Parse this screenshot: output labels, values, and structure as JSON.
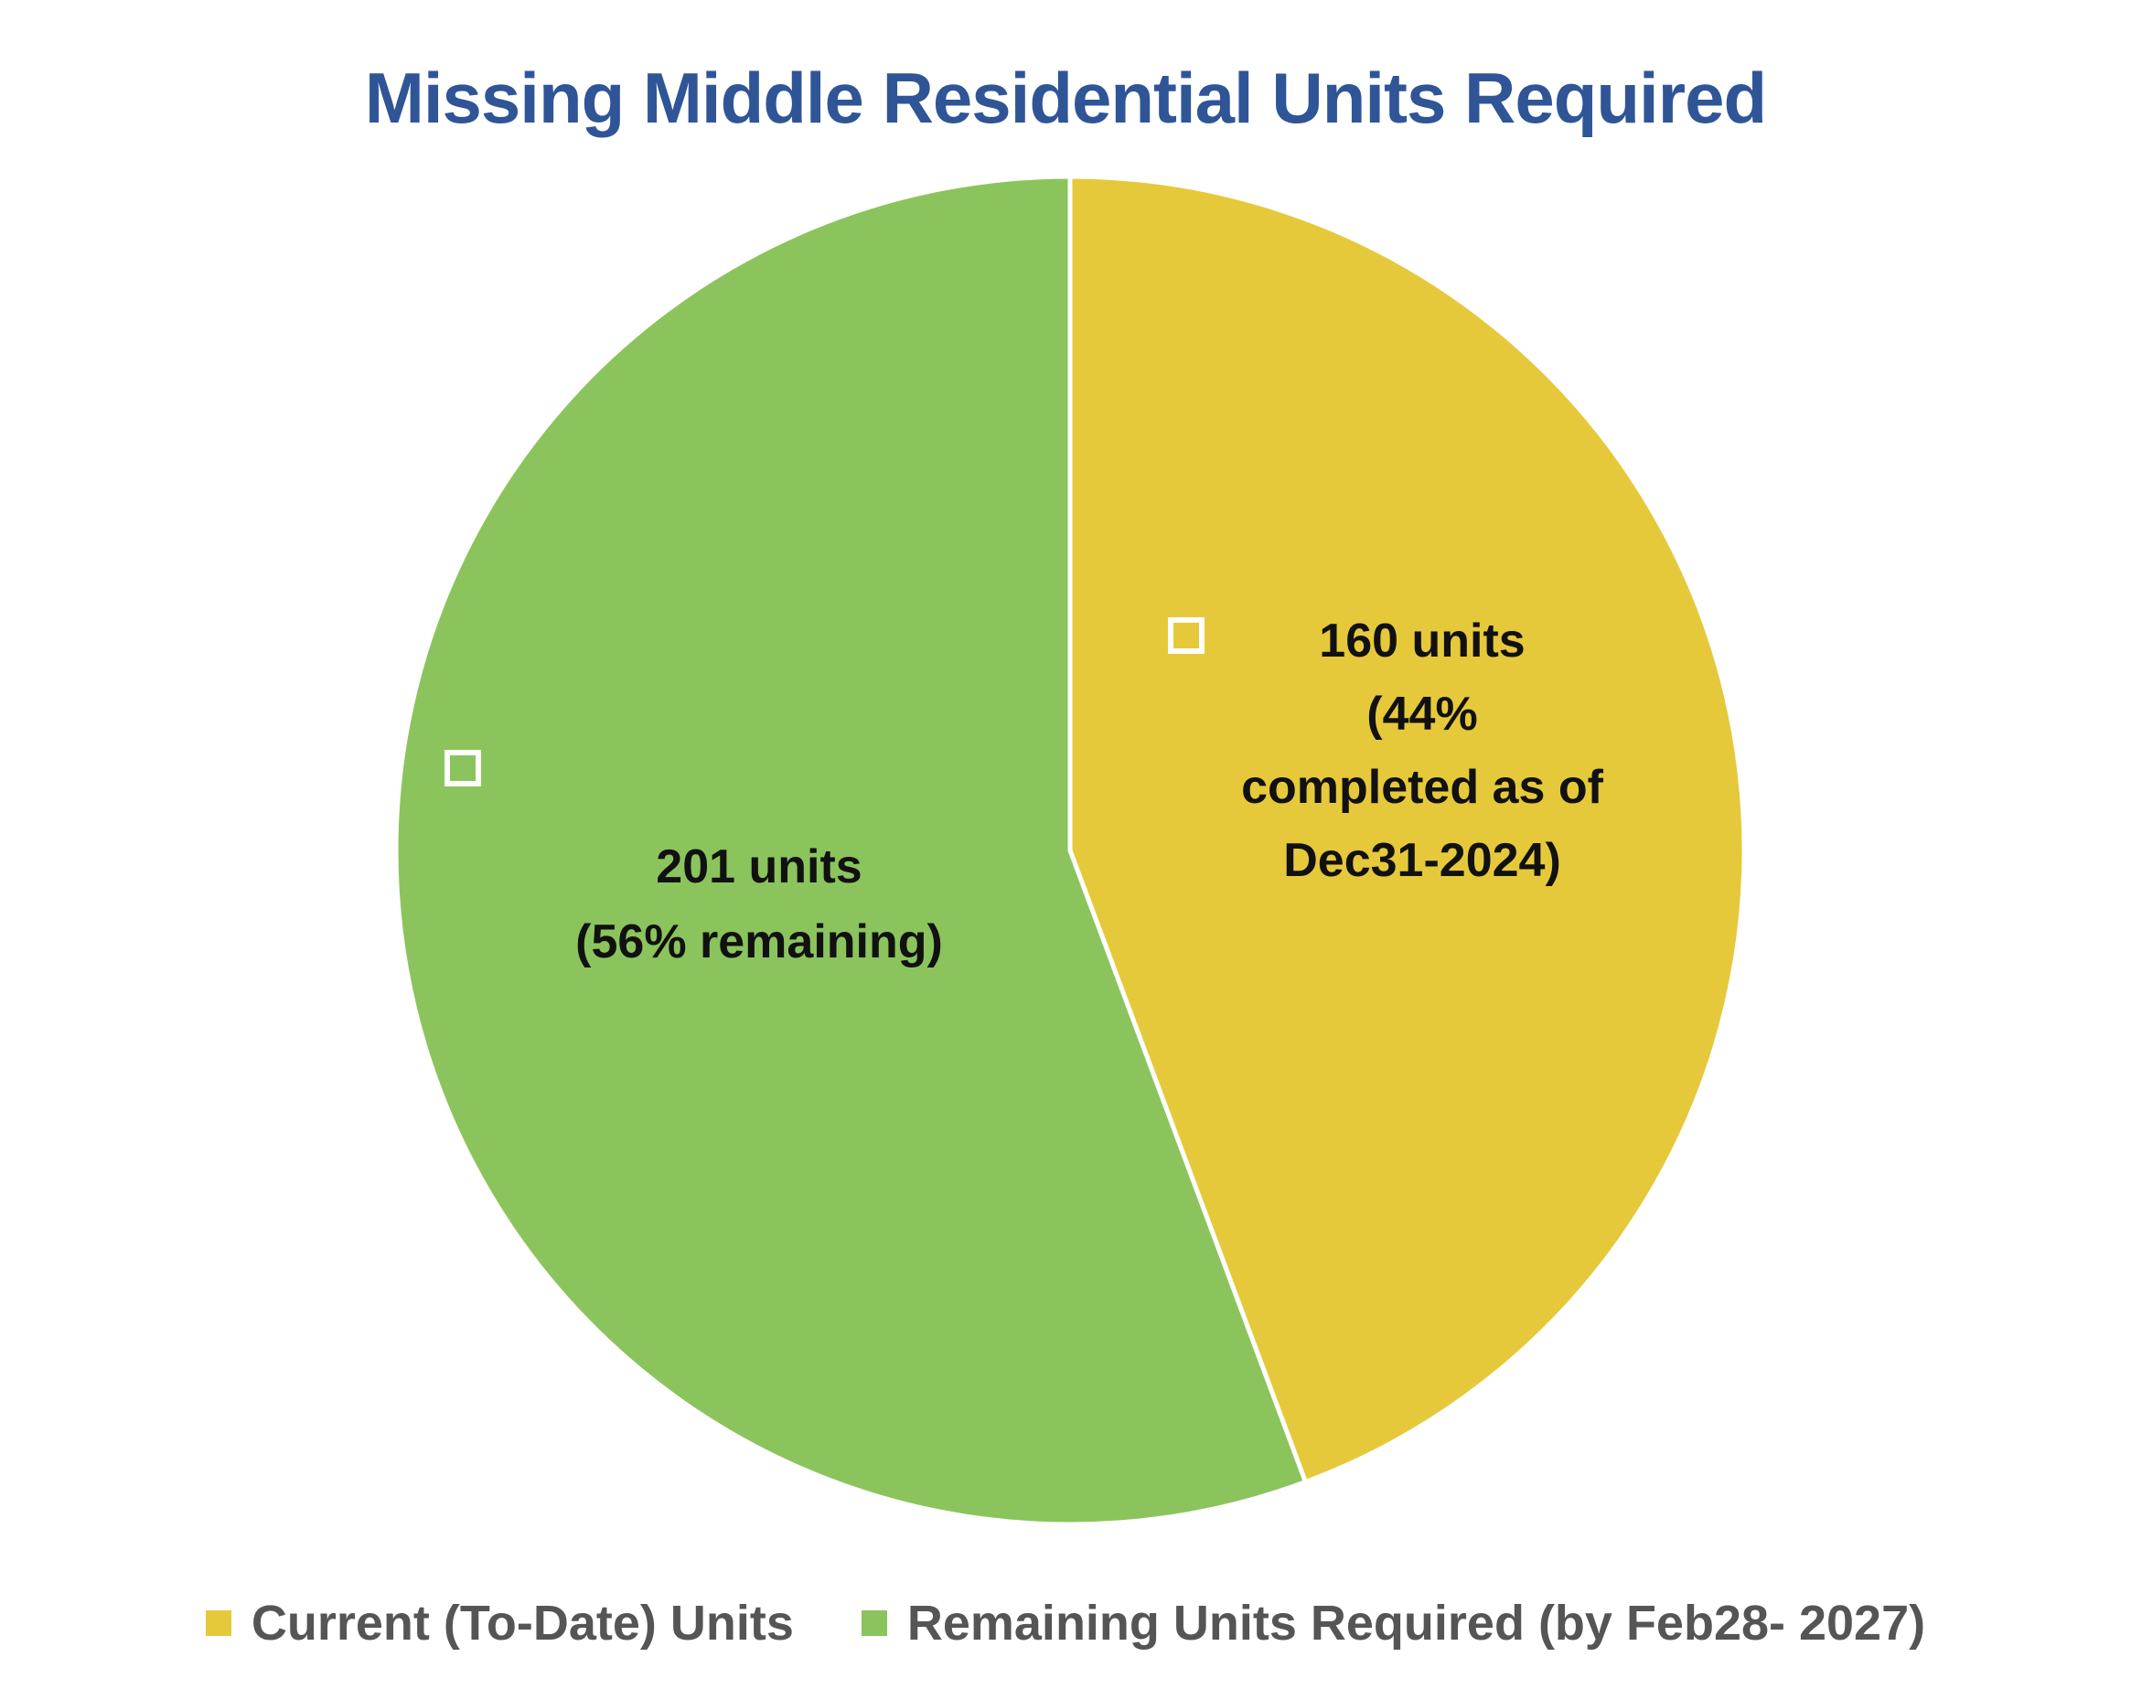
{
  "chart_data": {
    "type": "pie",
    "title": "Missing Middle Residential Units Required",
    "slices": [
      {
        "name": "Current (To-Date) Units",
        "value": 160,
        "percent": 44,
        "color": "#e6c93b",
        "label_lines": [
          "160 units",
          "(44%",
          "completed as of",
          "Dec31-2024)"
        ]
      },
      {
        "name": "Remaining Units Required (by Feb28- 2027)",
        "value": 201,
        "percent": 56,
        "color": "#8bc45c",
        "label_lines": [
          "201 units",
          "(56% remaining)"
        ]
      }
    ],
    "legend_position": "bottom"
  }
}
